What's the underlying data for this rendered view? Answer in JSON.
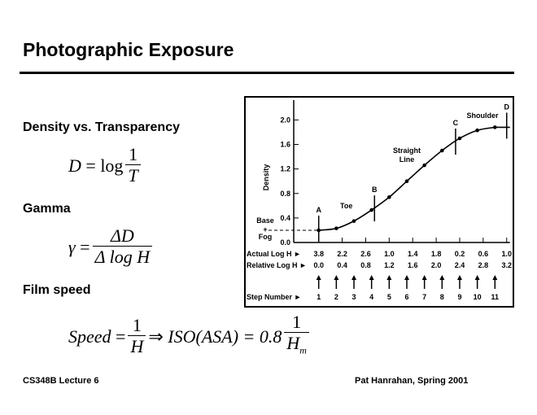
{
  "title": "Photographic Exposure",
  "sections": [
    {
      "heading": "Density vs. Transparency",
      "formula": {
        "lhs": "D",
        "op": "=",
        "fn": "log",
        "num": "1",
        "den": "T"
      }
    },
    {
      "heading": "Gamma",
      "formula": {
        "lhs": "γ",
        "op": "=",
        "num": "ΔD",
        "den": "Δ log H"
      }
    },
    {
      "heading": "Film speed",
      "formula": {
        "lhs": "Speed",
        "op": "=",
        "num": "1",
        "den": "H",
        "implies": "⇒",
        "mid": "ISO(ASA) = 0.8",
        "num2": "1",
        "den2": "H",
        "den2_sub": "m"
      }
    }
  ],
  "footer": {
    "left": "CS348B Lecture 6",
    "right": "Pat Hanrahan, Spring 2001"
  },
  "chart_data": {
    "type": "line",
    "ylabel": "Density",
    "yticks": [
      "0.0",
      "0.4",
      "0.8",
      "1.2",
      "1.6",
      "2.0"
    ],
    "ylim": [
      0,
      2.0
    ],
    "xlim": [
      0,
      3.2
    ],
    "actual_log_h_label": "Actual Log H",
    "actual_log_h": [
      "3.8",
      "2.2",
      "2.6",
      "1.0",
      "1.4",
      "1.8",
      "0.2",
      "0.6",
      "1.0"
    ],
    "relative_log_h_label": "Relative Log H",
    "relative_log_h": [
      "0.0",
      "0.4",
      "0.8",
      "1.2",
      "1.6",
      "2.0",
      "2.4",
      "2.8",
      "3.2"
    ],
    "step_label": "Step Number",
    "steps": [
      "1",
      "2",
      "3",
      "4",
      "5",
      "6",
      "7",
      "8",
      "9",
      "10",
      "11"
    ],
    "points": {
      "x": [
        0,
        0.3,
        0.6,
        0.9,
        1.2,
        1.5,
        1.8,
        2.1,
        2.4,
        2.7,
        3.0
      ],
      "y": [
        0.2,
        0.23,
        0.35,
        0.53,
        0.74,
        1.0,
        1.26,
        1.5,
        1.7,
        1.83,
        1.88
      ]
    },
    "markers": [
      {
        "label": "A",
        "x": 0
      },
      {
        "label": "B",
        "x": 0.95
      },
      {
        "label": "C",
        "x": 2.33
      },
      {
        "label": "D",
        "x": 3.2
      }
    ],
    "annotations": [
      "Toe",
      "Straight",
      "Line",
      "Shoulder",
      "Base",
      "+",
      "Fog"
    ]
  }
}
